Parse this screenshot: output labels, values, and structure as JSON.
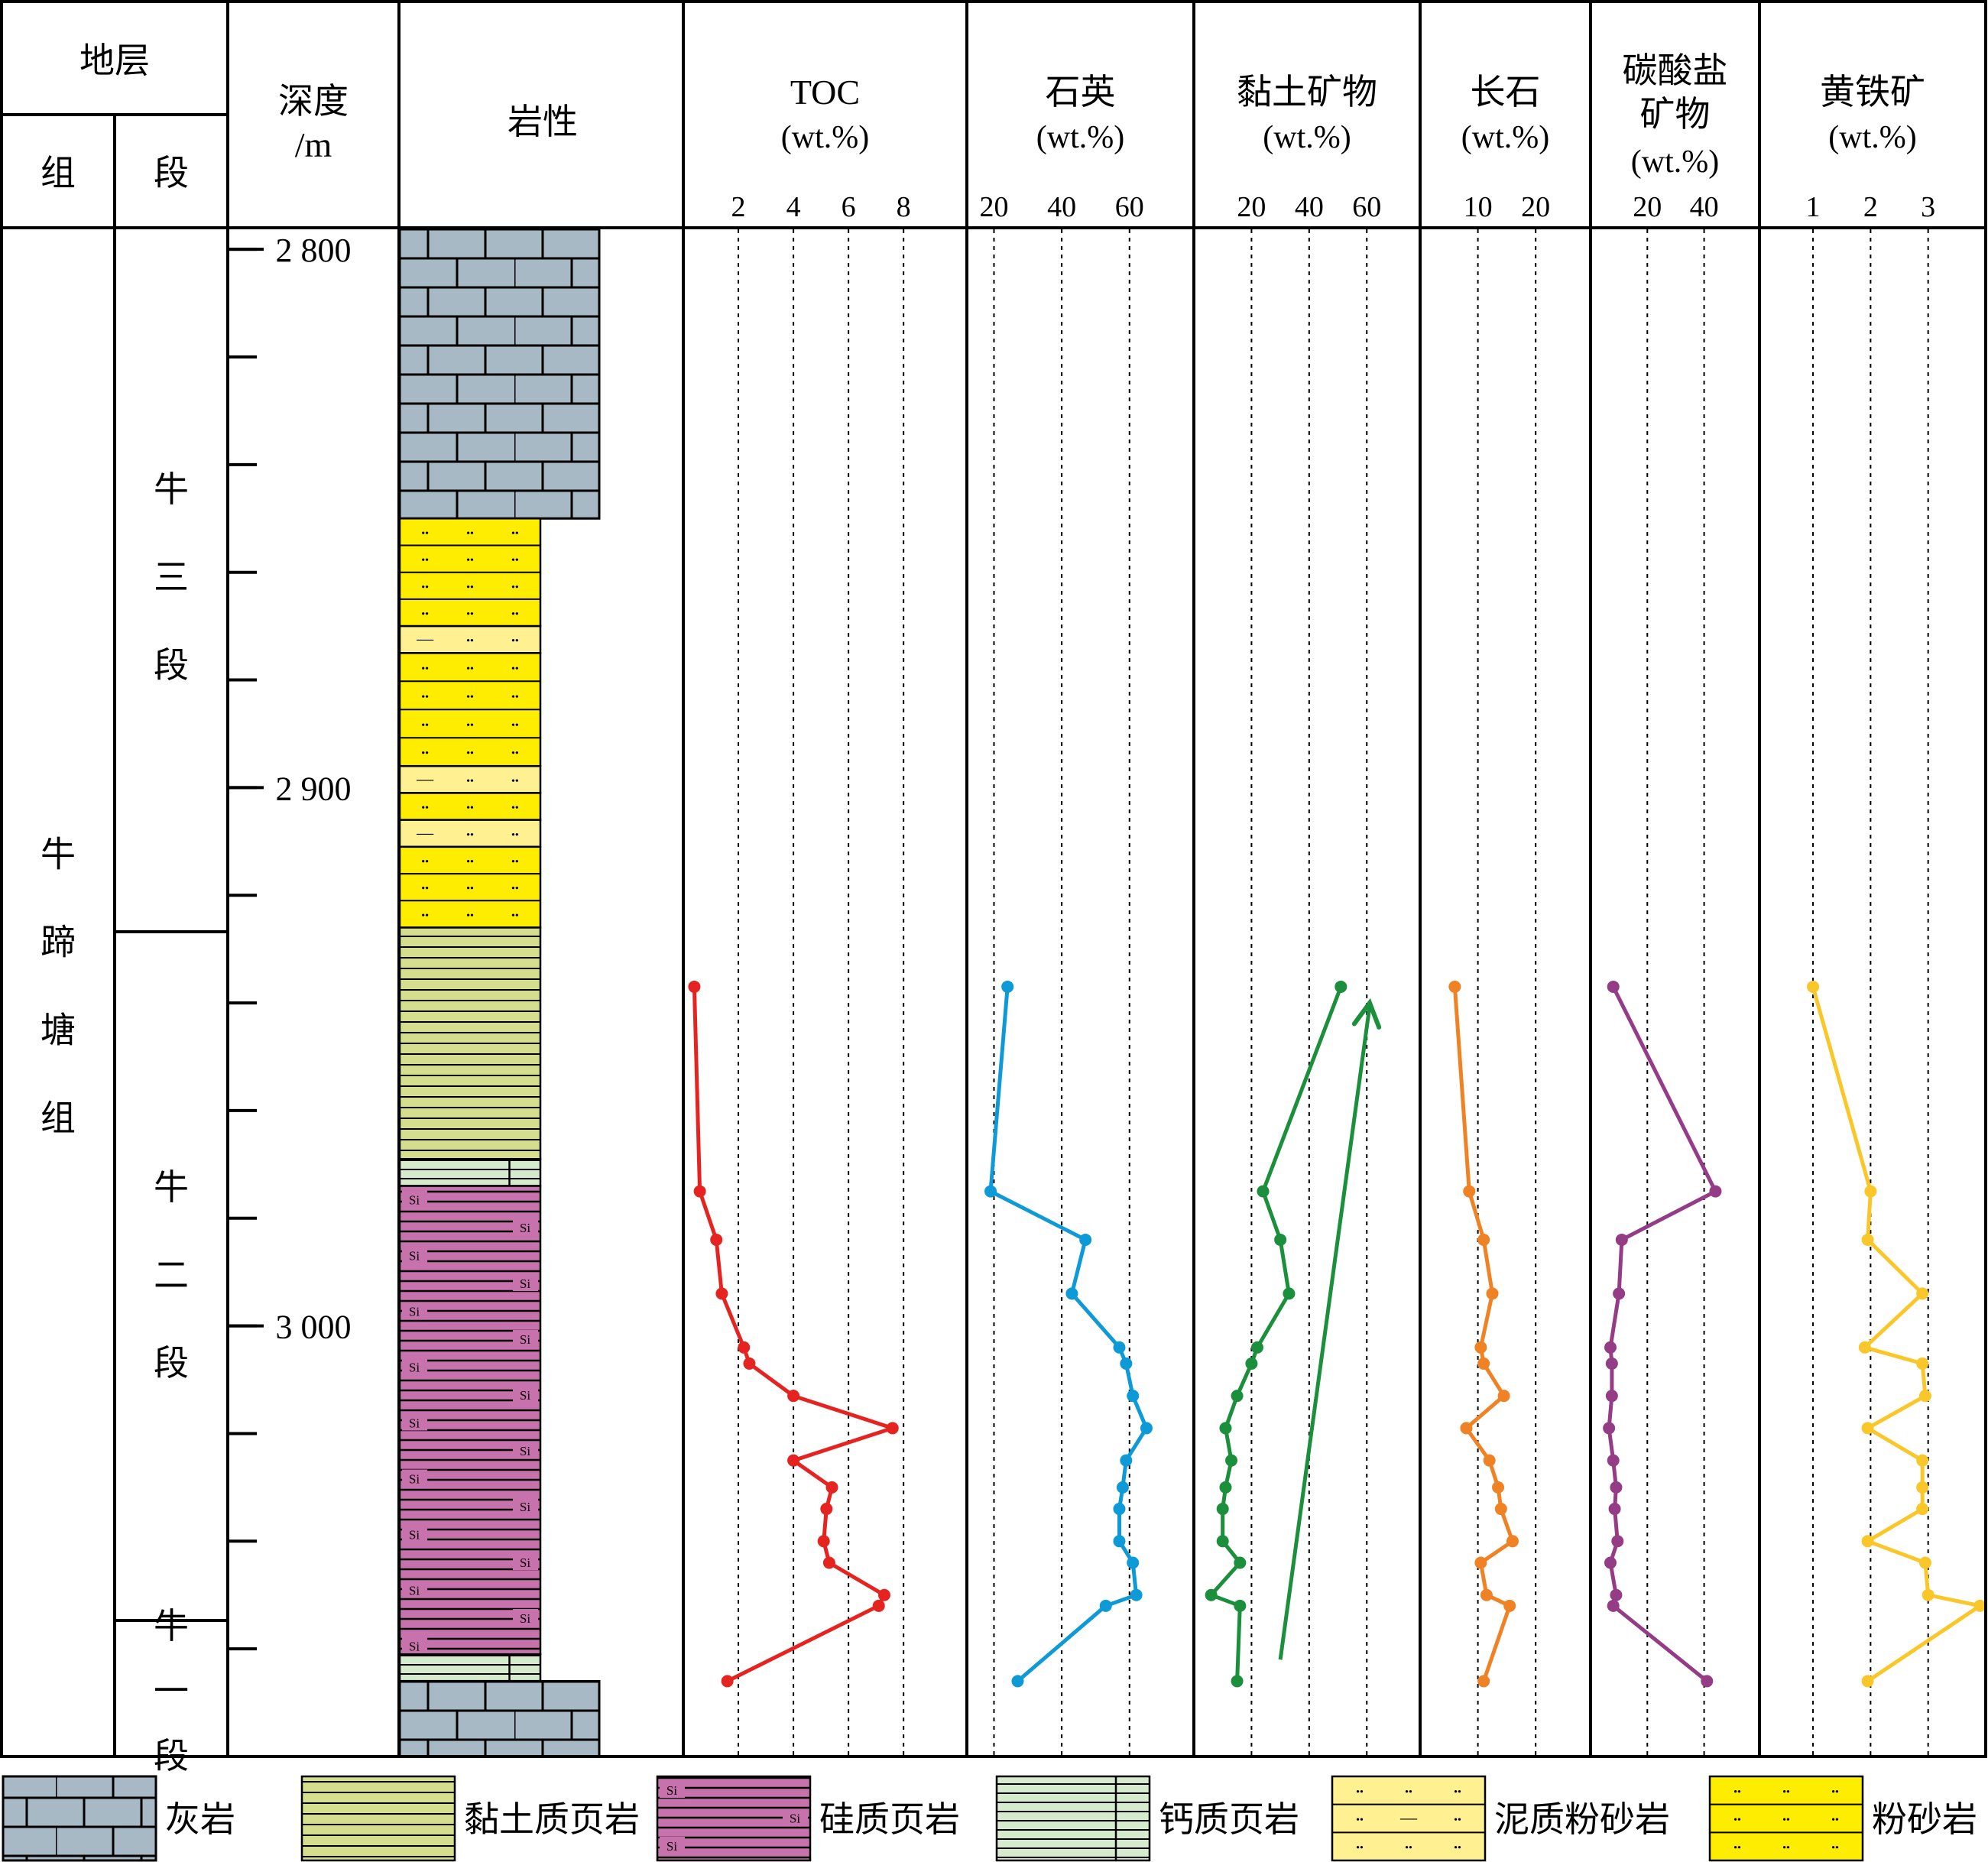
{
  "header": {
    "stratum": "地层",
    "formation": "组",
    "member": "段",
    "depth": "深度",
    "depth_unit": "/m",
    "lithology": "岩性"
  },
  "stratigraphy": {
    "formation": "牛蹄塘组",
    "members": [
      {
        "name": "牛三段",
        "top": 2800,
        "bottom": 2926
      },
      {
        "name": "牛二段",
        "top": 2926,
        "bottom": 3054
      },
      {
        "name": "牛一段",
        "top": 3054,
        "bottom": 3075
      }
    ]
  },
  "depth_axis": {
    "range": [
      2796,
      3080
    ],
    "labels": [
      {
        "depth": 2800,
        "text": "2 800"
      },
      {
        "depth": 2900,
        "text": "2 900"
      },
      {
        "depth": 3000,
        "text": "3 000"
      }
    ],
    "minor_ticks": [
      2800,
      2820,
      2840,
      2860,
      2880,
      2900,
      2920,
      2940,
      2960,
      2980,
      3000,
      3020,
      3040,
      3060,
      3080
    ]
  },
  "lithology_column": [
    {
      "type": "limestone",
      "top": 2796,
      "bottom": 2850
    },
    {
      "type": "siltstone",
      "top": 2850,
      "bottom": 2870
    },
    {
      "type": "muddy_siltstone",
      "top": 2870,
      "bottom": 2875
    },
    {
      "type": "siltstone",
      "top": 2875,
      "bottom": 2896
    },
    {
      "type": "muddy_siltstone",
      "top": 2896,
      "bottom": 2901
    },
    {
      "type": "siltstone",
      "top": 2901,
      "bottom": 2906
    },
    {
      "type": "muddy_siltstone",
      "top": 2906,
      "bottom": 2911
    },
    {
      "type": "siltstone",
      "top": 2911,
      "bottom": 2926
    },
    {
      "type": "clay_shale",
      "top": 2926,
      "bottom": 2969
    },
    {
      "type": "calcareous_shale",
      "top": 2969,
      "bottom": 2974
    },
    {
      "type": "siliceous_shale",
      "top": 2974,
      "bottom": 3061
    },
    {
      "type": "calcareous_shale",
      "top": 3061,
      "bottom": 3066
    },
    {
      "type": "limestone",
      "top": 3066,
      "bottom": 3080
    }
  ],
  "legend": [
    {
      "type": "limestone",
      "label": "灰岩"
    },
    {
      "type": "clay_shale",
      "label": "黏土质页岩"
    },
    {
      "type": "siliceous_shale",
      "label": "硅质页岩"
    },
    {
      "type": "calcareous_shale",
      "label": "钙质页岩"
    },
    {
      "type": "muddy_siltstone",
      "label": "泥质粉砂岩"
    },
    {
      "type": "siltstone",
      "label": "粉砂岩"
    }
  ],
  "symbols": {
    "si": "Si",
    "dots": "••",
    "dash": "—"
  },
  "colors": {
    "limestone": "#a7b9c4",
    "siltstone": "#ffed00",
    "muddy_siltstone": "#fff191",
    "clay_shale": "#d5dd8e",
    "calcareous_shale": "#d6ebcc",
    "siliceous_shale": "#c872ad",
    "toc": "#e52421",
    "quartz": "#0d9ad7",
    "clay": "#1b8f3c",
    "feldspar": "#ee8224",
    "carbonate": "#953c86",
    "pyrite": "#f9c72a"
  },
  "chart_data": {
    "type": "line",
    "y_axis": {
      "label": "深度/m",
      "range": [
        2796,
        3080
      ],
      "inverted": true
    },
    "depths": [
      2937,
      2975,
      2984,
      2994,
      3004,
      3007,
      3013,
      3019,
      3025,
      3030,
      3034,
      3040,
      3044,
      3050,
      3052,
      3066
    ],
    "tracks": [
      {
        "name": "TOC",
        "unit": "(wt.%)",
        "color_key": "toc",
        "xlim": [
          0,
          10.3
        ],
        "ticks": [
          2,
          4,
          6,
          8
        ],
        "values": [
          0.4,
          0.6,
          1.2,
          1.4,
          2.2,
          2.4,
          4.0,
          7.6,
          4.0,
          5.4,
          5.2,
          5.1,
          5.3,
          7.3,
          7.1,
          1.6
        ]
      },
      {
        "name": "石英",
        "unit": "(wt.%)",
        "color_key": "quartz",
        "xlim": [
          12,
          79
        ],
        "ticks": [
          20,
          40,
          60
        ],
        "values": [
          24,
          19,
          47,
          43,
          57,
          59,
          61,
          65,
          59,
          58,
          57,
          57,
          61,
          62,
          53,
          27
        ]
      },
      {
        "name": "黏土矿物",
        "unit": "(wt.%)",
        "color_key": "clay",
        "xlim": [
          0,
          78.5
        ],
        "ticks": [
          20,
          40,
          60
        ],
        "values": [
          51,
          24,
          30,
          33,
          22,
          20,
          15,
          11,
          13,
          11,
          10,
          10,
          16,
          6,
          16,
          15
        ]
      },
      {
        "name": "长石",
        "unit": "(wt.%)",
        "color_key": "feldspar",
        "xlim": [
          0,
          29.5
        ],
        "ticks": [
          10,
          20
        ],
        "values": [
          6,
          8.5,
          11,
          12.5,
          10.5,
          11,
          14.5,
          8,
          12,
          13.5,
          14,
          16,
          10.5,
          11.5,
          15.5,
          11
        ]
      },
      {
        "name": "碳酸盐矿物",
        "unit": "(wt.%)",
        "color_key": "carbonate",
        "xlim": [
          0,
          59.5
        ],
        "ticks": [
          20,
          40
        ],
        "values": [
          8,
          44,
          11,
          10,
          7,
          7.5,
          7.5,
          6.5,
          8,
          9,
          8.5,
          9.5,
          7,
          9,
          8,
          41
        ]
      },
      {
        "name": "黄铁矿",
        "unit": "(wt.%)",
        "color_key": "pyrite",
        "xlim": [
          0.07,
          4.0
        ],
        "ticks": [
          1,
          2,
          3
        ],
        "values": [
          1.0,
          2.0,
          1.95,
          2.9,
          1.9,
          2.9,
          2.95,
          1.95,
          2.9,
          2.9,
          2.9,
          1.95,
          2.95,
          3.0,
          3.9,
          1.95
        ]
      }
    ],
    "trend_arrow": {
      "track": "黏土矿物",
      "from": [
        30,
        3062
      ],
      "to": [
        61,
        2940
      ]
    }
  }
}
